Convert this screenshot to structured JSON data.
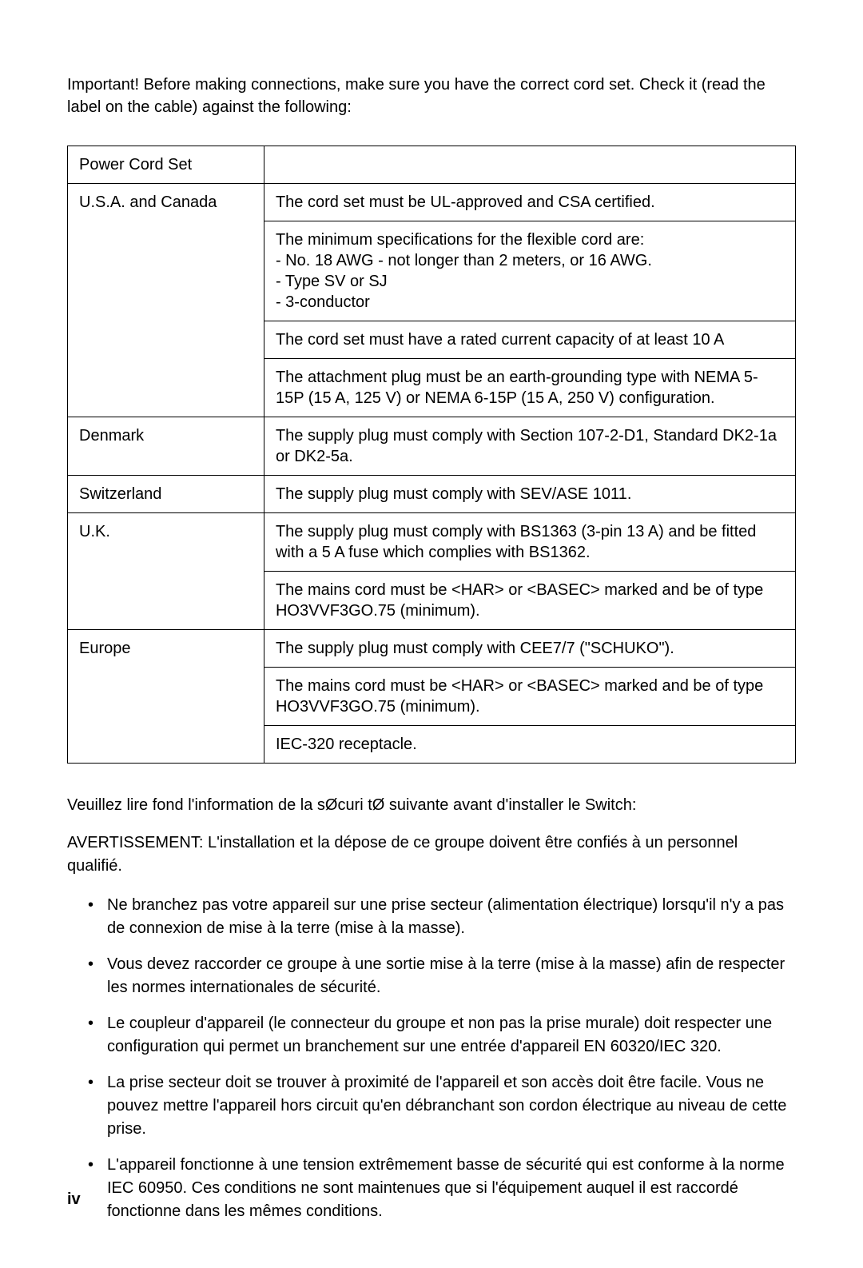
{
  "intro": "Important!  Before making connections, make sure you have the correct cord set. Check it (read the label on the cable) against the following:",
  "table": {
    "header": "Power Cord Set",
    "rows": [
      {
        "region": "U.S.A. and Canada",
        "specs": [
          "The cord set must be UL-approved and CSA certified.",
          "The minimum specifications for the flexible cord are:\n- No. 18 AWG - not longer than 2 meters, or 16 AWG.\n- Type SV or SJ\n- 3-conductor",
          "The cord set must have a rated current capacity of at least 10 A",
          "The attachment plug must be an earth-grounding type with NEMA 5-15P (15 A, 125 V) or NEMA 6-15P (15 A, 250 V) configuration."
        ]
      },
      {
        "region": "Denmark",
        "specs": [
          "The supply plug must comply with Section 107-2-D1, Standard DK2-1a or DK2-5a."
        ]
      },
      {
        "region": "Switzerland",
        "specs": [
          "The supply plug must comply with SEV/ASE 1011."
        ]
      },
      {
        "region": "U.K.",
        "specs": [
          "The supply plug must comply with BS1363 (3-pin 13 A) and be fitted with a 5 A fuse which complies with BS1362.",
          "The mains cord must be <HAR> or <BASEC> marked and be of type HO3VVF3GO.75 (minimum)."
        ]
      },
      {
        "region": "Europe",
        "specs": [
          "The supply plug must comply with CEE7/7 (\"SCHUKO\").",
          "The mains cord must be <HAR> or <BASEC> marked and be of type HO3VVF3GO.75 (minimum).",
          "IEC-320 receptacle."
        ]
      }
    ]
  },
  "french": {
    "intro": "Veuillez lire   fond l'information de la sØcuri      tØ suivante avant d'installer le Switch:",
    "warning": "AVERTISSEMENT:  L'installation et la dépose de ce groupe doivent être confiés à un personnel qualifié.",
    "bullets": [
      "Ne branchez pas votre appareil sur une prise secteur (alimentation électrique) lorsqu'il n'y a pas de connexion de mise à la terre (mise à la masse).",
      "Vous devez raccorder ce groupe à une sortie mise à la terre (mise à la masse) afin de respecter les normes internationales de sécurité.",
      "Le coupleur d'appareil (le connecteur du groupe et non pas la prise murale) doit respecter une configuration qui permet un branchement sur une entrée d'appareil EN 60320/IEC 320.",
      "La prise secteur doit se trouver à proximité de l'appareil et son accès doit être facile. Vous ne pouvez mettre l'appareil hors circuit qu'en débranchant son cordon électrique au niveau de cette prise.",
      "L'appareil fonctionne à une tension extrêmement basse de sécurité qui est conforme à la norme IEC 60950. Ces conditions ne sont maintenues que si l'équipement auquel il est raccordé fonctionne dans les mêmes conditions."
    ]
  },
  "page_num": "iv"
}
